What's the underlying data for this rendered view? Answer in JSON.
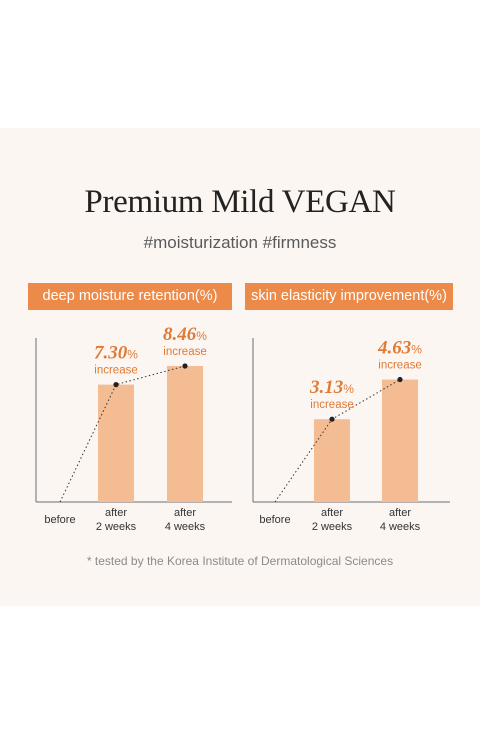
{
  "title": "Premium Mild VEGAN",
  "subtitle": "#moisturization #firmness",
  "footnote": "* tested by the Korea Institute of Dermatological Sciences",
  "colors": {
    "accent": "#ec8a4a",
    "bar": "#f4bc93",
    "value_text": "#e07a35",
    "background": "#fcf6f2"
  },
  "chart_data": [
    {
      "type": "bar",
      "title": "deep moisture retention(%)",
      "categories": [
        "before",
        "after\n2 weeks",
        "after\n4 weeks"
      ],
      "values": [
        0,
        7.3,
        8.46
      ],
      "data_labels": [
        {
          "value": "",
          "unit": "",
          "note": ""
        },
        {
          "value": "7.30",
          "unit": "%",
          "note": "increase"
        },
        {
          "value": "8.46",
          "unit": "%",
          "note": "increase"
        }
      ],
      "ylim": [
        0,
        10.2
      ],
      "trend_line": "dotted",
      "grid": false
    },
    {
      "type": "bar",
      "title": "skin elasticity improvement(%)",
      "categories": [
        "before",
        "after\n2 weeks",
        "after\n4 weeks"
      ],
      "values": [
        0,
        3.13,
        4.63
      ],
      "data_labels": [
        {
          "value": "",
          "unit": "",
          "note": ""
        },
        {
          "value": "3.13",
          "unit": "%",
          "note": "increase"
        },
        {
          "value": "4.63",
          "unit": "%",
          "note": "increase"
        }
      ],
      "ylim": [
        0,
        6.2
      ],
      "trend_line": "dotted",
      "grid": false
    }
  ]
}
